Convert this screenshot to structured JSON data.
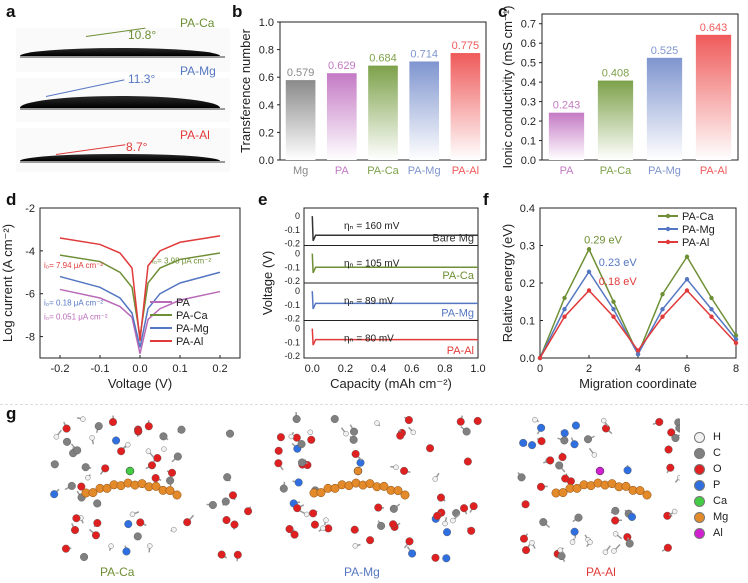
{
  "panel_labels": {
    "a": "a",
    "b": "b",
    "c": "c",
    "d": "d",
    "e": "e",
    "f": "f",
    "g": "g"
  },
  "panel_a": {
    "rows": [
      {
        "name": "PA-Ca",
        "angle": "10.8°",
        "color": "#6e8f35"
      },
      {
        "name": "PA-Mg",
        "angle": "11.3°",
        "color": "#5577c2"
      },
      {
        "name": "PA-Al",
        "angle": "8.7°",
        "color": "#e03a3a"
      }
    ]
  },
  "chart_data": [
    {
      "panel": "b",
      "type": "bar",
      "categories": [
        "Mg",
        "PA",
        "PA-Ca",
        "PA-Mg",
        "PA-Al"
      ],
      "values": [
        0.579,
        0.629,
        0.684,
        0.714,
        0.775
      ],
      "value_labels": [
        "0.579",
        "0.629",
        "0.684",
        "0.714",
        "0.775"
      ],
      "colors": [
        "#8a8a8a",
        "#c47ac4",
        "#7da14a",
        "#7f95cf",
        "#ef5a5a"
      ],
      "ylabel": "Transference number",
      "ylim": [
        0,
        1.0
      ],
      "yticks": [
        "0.0",
        "0.2",
        "0.4",
        "0.6",
        "0.8",
        "1.0"
      ]
    },
    {
      "panel": "c",
      "type": "bar",
      "categories": [
        "PA",
        "PA-Ca",
        "PA-Mg",
        "PA-Al"
      ],
      "values": [
        0.243,
        0.408,
        0.525,
        0.643
      ],
      "value_labels": [
        "0.243",
        "0.408",
        "0.525",
        "0.643"
      ],
      "colors": [
        "#c47ac4",
        "#7da14a",
        "#7f95cf",
        "#ef5a5a"
      ],
      "ylabel": "Ionic conductivity (mS cm⁻¹)",
      "ylim": [
        0,
        0.75
      ],
      "yticks": [
        "0.0",
        "0.1",
        "0.2",
        "0.3",
        "0.4",
        "0.5",
        "0.6",
        "0.7"
      ]
    },
    {
      "panel": "d",
      "type": "line",
      "xlabel": "Voltage (V)",
      "ylabel": "Log current (A cm⁻²)",
      "xlim": [
        -0.25,
        0.25
      ],
      "ylim": [
        -9,
        -2
      ],
      "xticks": [
        "-0.2",
        "-0.1",
        "0.0",
        "0.1",
        "0.2"
      ],
      "yticks": [
        "-2",
        "-4",
        "-6",
        "-8"
      ],
      "series": [
        {
          "name": "PA",
          "color": "#b86ab8",
          "x": [
            -0.2,
            -0.1,
            -0.05,
            -0.02,
            0.0,
            0.02,
            0.05,
            0.1,
            0.2
          ],
          "y": [
            -5.8,
            -6.2,
            -6.6,
            -7.1,
            -8.8,
            -7.2,
            -6.7,
            -6.3,
            -5.9
          ]
        },
        {
          "name": "PA-Ca",
          "color": "#6e8f35",
          "x": [
            -0.2,
            -0.1,
            -0.05,
            -0.02,
            0.0,
            0.02,
            0.05,
            0.1,
            0.2
          ],
          "y": [
            -4.2,
            -4.5,
            -5.0,
            -5.7,
            -8.0,
            -5.5,
            -4.8,
            -4.4,
            -4.1
          ]
        },
        {
          "name": "PA-Mg",
          "color": "#5577c2",
          "x": [
            -0.2,
            -0.1,
            -0.05,
            -0.02,
            0.0,
            0.02,
            0.05,
            0.1,
            0.2
          ],
          "y": [
            -5.2,
            -5.7,
            -6.2,
            -6.9,
            -8.5,
            -6.7,
            -6.0,
            -5.5,
            -5.0
          ]
        },
        {
          "name": "PA-Al",
          "color": "#e03a3a",
          "x": [
            -0.2,
            -0.1,
            -0.05,
            -0.02,
            0.0,
            0.02,
            0.05,
            0.1,
            0.2
          ],
          "y": [
            -3.4,
            -3.7,
            -4.1,
            -4.8,
            -8.2,
            -4.7,
            -4.0,
            -3.6,
            -3.3
          ]
        }
      ],
      "annotations": [
        {
          "text": "i₀= 7.94 μA cm⁻²",
          "color": "#e03a3a"
        },
        {
          "text": "i₀= 3.98 μA cm⁻²",
          "color": "#6e8f35"
        },
        {
          "text": "i₀= 0.18 μA cm⁻²",
          "color": "#5577c2"
        },
        {
          "text": "i₀= 0.051 μA cm⁻²",
          "color": "#b86ab8"
        }
      ]
    },
    {
      "panel": "e",
      "type": "line",
      "xlabel": "Capacity (mAh cm⁻²)",
      "ylabel": "Voltage (V)",
      "xlim": [
        -0.05,
        1.0
      ],
      "xticks": [
        "0.0",
        "0.2",
        "0.4",
        "0.6",
        "0.8",
        "1.0"
      ],
      "subplot_yticks": [
        "0",
        "-0.1",
        "-0.2"
      ],
      "subplots": [
        {
          "name": "Bare Mg",
          "eta": "ηₙ = 160 mV",
          "color": "#333333",
          "plateau": -0.14
        },
        {
          "name": "PA-Ca",
          "eta": "ηₙ = 105 mV",
          "color": "#6e8f35",
          "plateau": -0.1
        },
        {
          "name": "PA-Mg",
          "eta": "ηₙ = 89 mV",
          "color": "#5577c2",
          "plateau": -0.09
        },
        {
          "name": "PA-Al",
          "eta": "ηₙ = 80 mV",
          "color": "#e03a3a",
          "plateau": -0.08
        }
      ]
    },
    {
      "panel": "f",
      "type": "line",
      "xlabel": "Migration coordinate",
      "ylabel": "Relative energy (eV)",
      "xlim": [
        0,
        8
      ],
      "ylim": [
        0,
        0.4
      ],
      "xticks": [
        "0",
        "2",
        "4",
        "6",
        "8"
      ],
      "yticks": [
        "0.0",
        "0.1",
        "0.2",
        "0.3",
        "0.4"
      ],
      "series": [
        {
          "name": "PA-Ca",
          "color": "#6e8f35",
          "x": [
            0,
            1,
            2,
            3,
            4,
            5,
            6,
            7,
            8
          ],
          "y": [
            0.0,
            0.16,
            0.29,
            0.15,
            0.01,
            0.17,
            0.27,
            0.16,
            0.06
          ]
        },
        {
          "name": "PA-Mg",
          "color": "#5577c2",
          "x": [
            0,
            1,
            2,
            3,
            4,
            5,
            6,
            7,
            8
          ],
          "y": [
            0.0,
            0.13,
            0.23,
            0.13,
            0.01,
            0.13,
            0.21,
            0.13,
            0.05
          ]
        },
        {
          "name": "PA-Al",
          "color": "#e03a3a",
          "x": [
            0,
            1,
            2,
            3,
            4,
            5,
            6,
            7,
            8
          ],
          "y": [
            0.0,
            0.11,
            0.18,
            0.11,
            0.02,
            0.11,
            0.18,
            0.11,
            0.04
          ]
        }
      ],
      "annotations": [
        {
          "text": "0.29 eV",
          "color": "#6e8f35"
        },
        {
          "text": "0.23 eV",
          "color": "#5577c2"
        },
        {
          "text": "0.18 eV",
          "color": "#e03a3a"
        }
      ]
    }
  ],
  "panel_g": {
    "captions": [
      {
        "text": "PA-Ca",
        "color": "#6e8f35"
      },
      {
        "text": "PA-Mg",
        "color": "#5577c2"
      },
      {
        "text": "PA-Al",
        "color": "#e03a3a"
      }
    ],
    "legend": [
      {
        "label": "H",
        "color": "#f2f2f2"
      },
      {
        "label": "C",
        "color": "#808080"
      },
      {
        "label": "O",
        "color": "#e02020"
      },
      {
        "label": "P",
        "color": "#2f6fe0"
      },
      {
        "label": "Ca",
        "color": "#44cc44"
      },
      {
        "label": "Mg",
        "color": "#e38a2a"
      },
      {
        "label": "Al",
        "color": "#d020d0"
      }
    ]
  }
}
